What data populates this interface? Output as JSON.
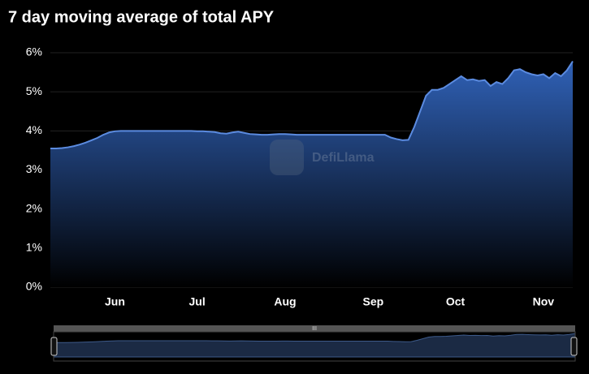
{
  "chart_data": {
    "type": "area",
    "title": "7 day moving average of total APY",
    "watermark": "DefiLlama",
    "color": "#5b8be0",
    "categories": [
      null,
      null,
      null,
      null,
      null,
      null,
      null,
      null,
      null,
      null,
      null,
      "Jun",
      null,
      null,
      null,
      null,
      null,
      null,
      null,
      null,
      null,
      null,
      null,
      null,
      null,
      "Jul",
      null,
      null,
      null,
      null,
      null,
      null,
      null,
      null,
      null,
      null,
      null,
      null,
      null,
      null,
      "Aug",
      null,
      null,
      null,
      null,
      null,
      null,
      null,
      null,
      null,
      null,
      null,
      null,
      null,
      null,
      "Sep",
      null,
      null,
      null,
      null,
      null,
      null,
      null,
      null,
      null,
      null,
      null,
      null,
      null,
      "Oct",
      null,
      null,
      null,
      null,
      null,
      null,
      null,
      null,
      null,
      null,
      null,
      null,
      null,
      null,
      "Nov",
      null,
      null,
      null,
      null,
      null
    ],
    "values": [
      3.55,
      3.55,
      3.56,
      3.58,
      3.61,
      3.65,
      3.7,
      3.76,
      3.82,
      3.9,
      3.96,
      3.99,
      4.0,
      4.0,
      4.0,
      4.0,
      4.0,
      4.0,
      4.0,
      4.0,
      4.0,
      4.0,
      4.0,
      4.0,
      4.0,
      3.99,
      3.99,
      3.98,
      3.97,
      3.94,
      3.93,
      3.96,
      3.98,
      3.95,
      3.92,
      3.91,
      3.9,
      3.9,
      3.91,
      3.92,
      3.92,
      3.91,
      3.9,
      3.9,
      3.9,
      3.9,
      3.9,
      3.9,
      3.9,
      3.9,
      3.9,
      3.9,
      3.9,
      3.9,
      3.9,
      3.9,
      3.9,
      3.9,
      3.83,
      3.79,
      3.76,
      3.77,
      4.1,
      4.5,
      4.9,
      5.05,
      5.05,
      5.1,
      5.2,
      5.3,
      5.4,
      5.3,
      5.32,
      5.28,
      5.3,
      5.15,
      5.25,
      5.2,
      5.35,
      5.55,
      5.58,
      5.5,
      5.45,
      5.42,
      5.45,
      5.35,
      5.48,
      5.4,
      5.55,
      5.78
    ],
    "ylim": [
      0,
      6
    ],
    "yticks": [
      {
        "value": 0,
        "label": "0%"
      },
      {
        "value": 1,
        "label": "1%"
      },
      {
        "value": 2,
        "label": "2%"
      },
      {
        "value": 3,
        "label": "3%"
      },
      {
        "value": 4,
        "label": "4%"
      },
      {
        "value": 5,
        "label": "5%"
      },
      {
        "value": 6,
        "label": "6%"
      }
    ],
    "grid": true
  }
}
